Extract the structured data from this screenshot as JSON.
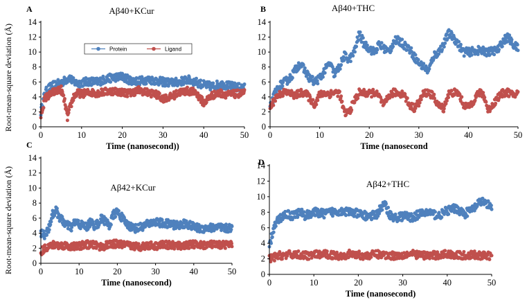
{
  "figure": {
    "ylabel": "Root-mean-square deviation (Å)",
    "legend": {
      "protein": "Protein",
      "ligand": "Ligand"
    },
    "colors": {
      "protein": "#4f81bd",
      "ligand": "#c0504d"
    }
  },
  "chart_data": [
    {
      "panel": "A",
      "type": "scatter",
      "title": "Aβ40+KCur",
      "xlabel": "Time (nanosecond))",
      "xlim": [
        0,
        50
      ],
      "ylim": [
        0,
        14
      ],
      "xticks": [
        "0",
        "10",
        "20",
        "30",
        "40",
        "50"
      ],
      "yticks": [
        "0",
        "2",
        "4",
        "6",
        "8",
        "10",
        "12",
        "14"
      ],
      "legend_shown": true,
      "series": [
        {
          "name": "Protein",
          "x": [
            0,
            1,
            2,
            3,
            4,
            5,
            6,
            7,
            8,
            9,
            10,
            12,
            14,
            16,
            18,
            20,
            22,
            24,
            26,
            28,
            30,
            32,
            34,
            36,
            38,
            40,
            42,
            44,
            46,
            48,
            50
          ],
          "values": [
            2.0,
            4.5,
            5.2,
            5.5,
            5.7,
            5.9,
            6.2,
            6.6,
            6.0,
            5.8,
            5.9,
            6.1,
            6.0,
            6.4,
            6.6,
            6.7,
            6.2,
            6.1,
            6.3,
            6.2,
            6.0,
            5.9,
            6.0,
            6.3,
            6.0,
            5.6,
            5.4,
            5.7,
            5.5,
            5.3,
            5.2
          ]
        },
        {
          "name": "Ligand",
          "x": [
            0,
            1,
            2,
            3,
            4,
            5,
            6,
            6.5,
            7,
            8,
            9,
            10,
            12,
            14,
            16,
            18,
            20,
            22,
            24,
            26,
            28,
            30,
            32,
            34,
            36,
            38,
            40,
            42,
            44,
            46,
            48,
            50
          ],
          "values": [
            1.5,
            3.8,
            4.2,
            4.6,
            4.8,
            5.0,
            3.0,
            1.2,
            2.2,
            4.0,
            4.5,
            4.4,
            4.6,
            4.5,
            4.7,
            4.8,
            4.6,
            4.5,
            4.9,
            4.6,
            4.4,
            3.8,
            4.0,
            4.6,
            4.8,
            4.6,
            3.2,
            4.2,
            4.5,
            4.3,
            4.4,
            4.5
          ]
        }
      ]
    },
    {
      "panel": "B",
      "type": "scatter",
      "title": "Aβ40+THC",
      "xlabel": "Time (nanosecond",
      "xlim": [
        0,
        50
      ],
      "ylim": [
        0,
        14
      ],
      "xticks": [
        "0",
        "10",
        "20",
        "30",
        "40",
        "50"
      ],
      "yticks": [
        "0",
        "2",
        "4",
        "6",
        "8",
        "10",
        "12",
        "14"
      ],
      "legend_shown": false,
      "series": [
        {
          "name": "Protein",
          "x": [
            0,
            1,
            2,
            3,
            4,
            5,
            6,
            7,
            8,
            9,
            10,
            11,
            12,
            13,
            14,
            15,
            16,
            17,
            18,
            19,
            20,
            21,
            22,
            23,
            24,
            25,
            26,
            27,
            28,
            29,
            30,
            31,
            32,
            33,
            34,
            35,
            36,
            37,
            38,
            39,
            40,
            42,
            44,
            46,
            47,
            48,
            49,
            50
          ],
          "values": [
            2.5,
            4.5,
            5.5,
            6.0,
            6.5,
            7.5,
            8.5,
            7.5,
            6.5,
            6.0,
            6.5,
            7.5,
            8.5,
            7.0,
            8.0,
            9.5,
            9.0,
            10.0,
            12.5,
            11.0,
            10.5,
            10.0,
            11.0,
            10.5,
            10.0,
            11.5,
            11.5,
            11.0,
            10.5,
            9.5,
            8.5,
            8.0,
            7.5,
            9.5,
            10.0,
            11.0,
            12.5,
            12.0,
            11.0,
            10.0,
            10.0,
            10.2,
            10.0,
            10.3,
            11.5,
            12.0,
            11.0,
            10.5
          ]
        },
        {
          "name": "Ligand",
          "x": [
            0,
            1,
            2,
            3,
            4,
            5,
            6,
            7,
            8,
            9,
            10,
            11,
            12,
            13,
            14,
            15,
            16,
            17,
            18,
            19,
            20,
            21,
            22,
            23,
            24,
            25,
            26,
            27,
            28,
            29,
            30,
            31,
            32,
            33,
            34,
            35,
            36,
            37,
            38,
            39,
            40,
            41,
            42,
            43,
            44,
            45,
            46,
            47,
            48,
            49,
            50
          ],
          "values": [
            2.5,
            3.8,
            4.4,
            4.6,
            4.5,
            4.2,
            4.5,
            4.6,
            3.8,
            3.0,
            4.3,
            4.5,
            4.4,
            4.6,
            4.5,
            1.8,
            2.0,
            3.5,
            4.6,
            4.5,
            4.4,
            4.6,
            4.0,
            2.8,
            4.2,
            4.6,
            4.5,
            4.4,
            3.0,
            2.5,
            3.2,
            4.5,
            4.6,
            4.0,
            2.8,
            2.5,
            4.4,
            4.6,
            4.5,
            3.0,
            2.6,
            3.5,
            4.5,
            4.4,
            2.2,
            3.0,
            4.0,
            4.5,
            4.6,
            4.2,
            4.5
          ]
        }
      ]
    },
    {
      "panel": "C",
      "type": "scatter",
      "title": "Aβ42+KCur",
      "xlabel": "Time (nanosecond)",
      "xlim": [
        0,
        50
      ],
      "ylim": [
        0,
        14
      ],
      "xticks": [
        "0",
        "10",
        "20",
        "30",
        "40",
        "50"
      ],
      "yticks": [
        "0",
        "2",
        "4",
        "6",
        "8",
        "10",
        "12",
        "14"
      ],
      "legend_shown": false,
      "series": [
        {
          "name": "Protein",
          "x": [
            0,
            1,
            2,
            3,
            4,
            5,
            6,
            7,
            8,
            9,
            10,
            11,
            12,
            13,
            14,
            15,
            16,
            17,
            18,
            19,
            20,
            21,
            22,
            23,
            24,
            25,
            26,
            28,
            30,
            32,
            34,
            36,
            38,
            40,
            42,
            44,
            46,
            48,
            50
          ],
          "values": [
            4.0,
            3.8,
            4.5,
            6.5,
            7.0,
            6.0,
            5.5,
            5.0,
            4.8,
            5.5,
            5.2,
            5.0,
            4.8,
            5.5,
            5.0,
            5.3,
            6.0,
            5.5,
            5.0,
            6.5,
            6.8,
            6.2,
            5.5,
            5.0,
            4.8,
            4.6,
            4.8,
            5.2,
            5.5,
            5.3,
            5.2,
            5.0,
            5.3,
            4.8,
            4.6,
            4.7,
            4.8,
            4.6,
            4.7
          ]
        },
        {
          "name": "Ligand",
          "x": [
            0,
            1,
            2,
            3,
            4,
            5,
            6,
            8,
            10,
            12,
            14,
            16,
            18,
            20,
            22,
            24,
            26,
            28,
            30,
            32,
            34,
            36,
            38,
            40,
            42,
            44,
            46,
            48,
            50
          ],
          "values": [
            1.5,
            2.0,
            2.2,
            2.4,
            2.5,
            2.3,
            2.4,
            2.2,
            2.3,
            2.5,
            2.4,
            2.2,
            2.5,
            2.6,
            2.4,
            2.3,
            2.2,
            2.4,
            2.3,
            2.5,
            2.4,
            2.3,
            2.4,
            2.5,
            2.4,
            2.5,
            2.4,
            2.5,
            2.4
          ]
        }
      ]
    },
    {
      "panel": "D",
      "type": "scatter",
      "title": "Aβ42+THC",
      "xlabel": "Time (nanosecond)",
      "xlim": [
        0,
        50
      ],
      "ylim": [
        0,
        14
      ],
      "xticks": [
        "0",
        "10",
        "20",
        "30",
        "40",
        "50"
      ],
      "yticks": [
        "0",
        "2",
        "4",
        "6",
        "8",
        "10",
        "12",
        "14"
      ],
      "legend_shown": false,
      "series": [
        {
          "name": "Protein",
          "x": [
            0,
            1,
            2,
            3,
            4,
            5,
            6,
            7,
            8,
            9,
            10,
            12,
            14,
            16,
            18,
            20,
            22,
            24,
            25,
            26,
            27,
            28,
            30,
            32,
            34,
            36,
            38,
            40,
            42,
            44,
            46,
            48,
            49,
            50
          ],
          "values": [
            3.5,
            6.0,
            7.0,
            7.5,
            7.8,
            7.5,
            7.8,
            8.0,
            7.5,
            7.8,
            8.0,
            7.8,
            8.0,
            8.2,
            8.0,
            7.8,
            7.5,
            7.6,
            8.5,
            9.0,
            7.8,
            7.2,
            7.5,
            7.3,
            7.8,
            8.0,
            7.5,
            8.2,
            8.5,
            7.8,
            8.5,
            9.5,
            9.0,
            8.6
          ]
        },
        {
          "name": "Ligand",
          "x": [
            0,
            2,
            4,
            6,
            8,
            10,
            12,
            14,
            16,
            18,
            20,
            22,
            24,
            26,
            28,
            30,
            32,
            34,
            36,
            38,
            40,
            42,
            44,
            46,
            48,
            50
          ],
          "values": [
            2.0,
            2.4,
            2.5,
            2.6,
            2.4,
            2.5,
            2.6,
            2.5,
            2.4,
            2.6,
            2.5,
            2.4,
            2.6,
            2.5,
            2.4,
            2.5,
            2.6,
            2.5,
            2.4,
            2.5,
            2.6,
            2.5,
            2.4,
            2.5,
            2.4,
            2.4
          ]
        }
      ]
    }
  ]
}
